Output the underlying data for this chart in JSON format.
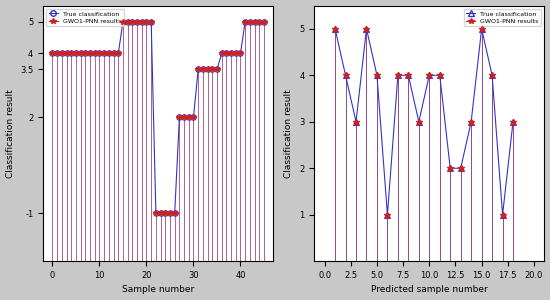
{
  "left": {
    "true_x": [
      0,
      1,
      2,
      3,
      4,
      5,
      6,
      7,
      8,
      9,
      10,
      11,
      12,
      13,
      14,
      15,
      16,
      17,
      18,
      19,
      20,
      21,
      22,
      23,
      24,
      25,
      26,
      27,
      28,
      29,
      30,
      31,
      32,
      33,
      34,
      35,
      36,
      37,
      38,
      39,
      40,
      41,
      42,
      43,
      44,
      45
    ],
    "true_y": [
      4,
      4,
      4,
      4,
      4,
      4,
      4,
      4,
      4,
      4,
      4,
      4,
      4,
      4,
      4,
      5,
      5,
      5,
      5,
      5,
      5,
      5,
      -1,
      -1,
      -1,
      -1,
      -1,
      2,
      2,
      2,
      2,
      3.5,
      3.5,
      3.5,
      3.5,
      3.5,
      4,
      4,
      4,
      4,
      4,
      5,
      5,
      5,
      5,
      5
    ],
    "pred_y": [
      4,
      4,
      4,
      4,
      4,
      4,
      4,
      4,
      4,
      4,
      4,
      4,
      4,
      4,
      4,
      5,
      5,
      5,
      5,
      5,
      5,
      5,
      -1,
      -1,
      -1,
      -1,
      -1,
      2,
      2,
      2,
      2,
      3.5,
      3.5,
      3.5,
      3.5,
      3.5,
      4,
      4,
      4,
      4,
      4,
      5,
      5,
      5,
      5,
      5
    ],
    "xlabel": "Sample number",
    "ylabel": "Classification result",
    "yticks": [
      -1,
      2,
      3.5,
      4,
      5
    ],
    "ytick_labels": [
      "-1",
      "2",
      "3.5",
      "4",
      "5"
    ],
    "xlim": [
      -2,
      47
    ],
    "ylim": [
      -2.5,
      5.5
    ],
    "stem_baseline": -2.5
  },
  "right": {
    "true_x": [
      1,
      2,
      3,
      4,
      5,
      6,
      7,
      8,
      9,
      10,
      11,
      12,
      13,
      14,
      15,
      16,
      17,
      18
    ],
    "true_y": [
      5,
      4,
      3,
      5,
      4,
      1,
      4,
      4,
      3,
      4,
      4,
      2,
      2,
      3,
      5,
      4,
      1,
      3
    ],
    "pred_y": [
      5,
      4,
      3,
      5,
      4,
      1,
      4,
      4,
      3,
      4,
      4,
      2,
      2,
      3,
      5,
      4,
      1,
      3
    ],
    "xlabel": "Predicted sample number",
    "ylabel": "Classification result",
    "yticks": [
      1,
      2,
      3,
      4,
      5
    ],
    "ytick_labels": [
      "1",
      "2",
      "3",
      "4",
      "5"
    ],
    "xlim": [
      -1,
      21
    ],
    "ylim": [
      0,
      5.5
    ],
    "stem_baseline": 0
  },
  "blue_color": "#3333cc",
  "red_color": "#cc2222",
  "bg_color": "#c8c8c8",
  "plot_bg": "#ffffff",
  "legend1_loc": "upper left",
  "legend2_loc": "upper right"
}
